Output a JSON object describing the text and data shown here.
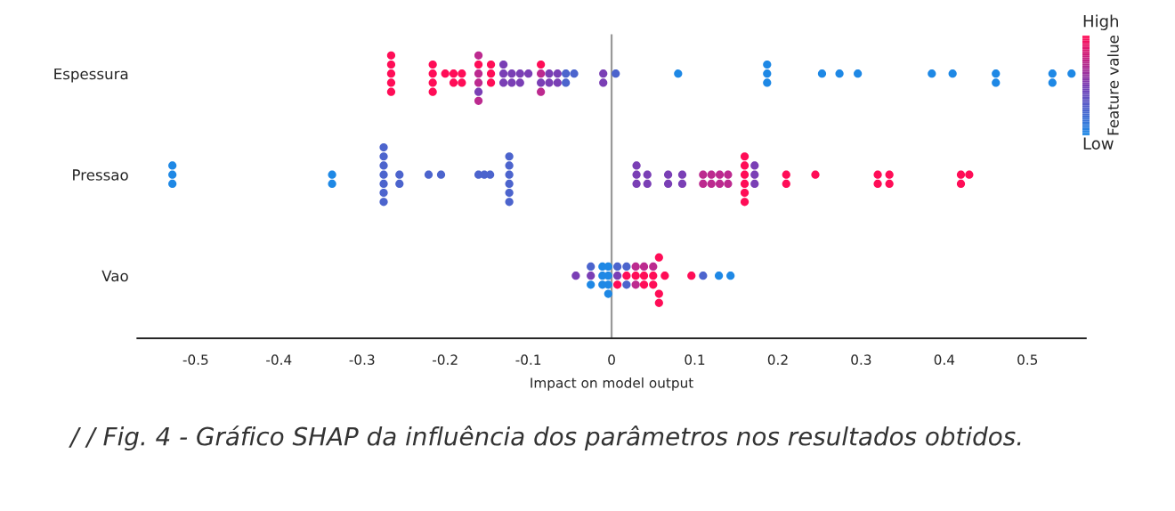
{
  "chart_data": {
    "type": "scatter",
    "orientation": "horizontal",
    "categories": [
      "Espessura",
      "Pressao",
      "Vao"
    ],
    "xlabel": "Impact on model output",
    "xlim": [
      -0.57,
      0.57
    ],
    "xticks": [
      -0.5,
      -0.4,
      -0.3,
      -0.2,
      -0.1,
      0,
      0.1,
      0.2,
      0.3,
      0.4,
      0.5
    ],
    "clabel": "Feature value",
    "ref_lines": [
      {
        "axis": "x",
        "value": 0,
        "color": "#999999"
      }
    ],
    "grid": false,
    "marker": "circle",
    "annotations": [
      "High",
      "Low",
      "/ / Fig. 4 - Gráfico SHAP da influência dos parâmetros nos resultados obtidos."
    ],
    "series": [
      {
        "x": [
          "Espessura",
          "Espessura",
          "Espessura",
          "Espessura",
          "Espessura",
          "Espessura",
          "Espessura",
          "Espessura",
          "Espessura",
          "Espessura",
          "Espessura",
          "Espessura",
          "Espessura",
          "Espessura",
          "Espessura",
          "Espessura",
          "Espessura",
          "Espessura",
          "Espessura",
          "Espessura",
          "Espessura",
          "Espessura",
          "Espessura",
          "Espessura",
          "Espessura",
          "Espessura",
          "Espessura",
          "Espessura",
          "Espessura",
          "Espessura",
          "Espessura",
          "Espessura",
          "Espessura",
          "Espessura",
          "Espessura",
          "Espessura",
          "Espessura",
          "Espessura",
          "Espessura",
          "Espessura",
          "Espessura",
          "Espessura",
          "Espessura",
          "Espessura",
          "Espessura",
          "Espessura",
          "Espessura",
          "Espessura",
          "Espessura",
          "Espessura",
          "Espessura",
          "Espessura",
          "Espessura",
          "Espessura",
          "Espessura",
          "Espessura",
          "Espessura",
          "Espessura",
          "Espessura"
        ],
        "values": [
          -0.265,
          -0.265,
          -0.265,
          -0.265,
          -0.265,
          -0.215,
          -0.215,
          -0.215,
          -0.215,
          -0.2,
          -0.19,
          -0.19,
          -0.18,
          -0.18,
          -0.16,
          -0.16,
          -0.16,
          -0.16,
          -0.16,
          -0.16,
          -0.145,
          -0.145,
          -0.145,
          -0.13,
          -0.13,
          -0.13,
          -0.12,
          -0.12,
          -0.11,
          -0.11,
          -0.1,
          -0.085,
          -0.085,
          -0.085,
          -0.085,
          -0.075,
          -0.075,
          -0.065,
          -0.065,
          -0.055,
          -0.055,
          -0.045,
          -0.01,
          -0.01,
          0.005,
          0.08,
          0.187,
          0.187,
          0.187,
          0.253,
          0.274,
          0.296,
          0.385,
          0.41,
          0.462,
          0.462,
          0.53,
          0.53,
          0.553
        ],
        "colors": [
          "#ff0d57",
          "#ff0d57",
          "#ff0d57",
          "#ff0d57",
          "#ff0d57",
          "#ff0d57",
          "#ff0d57",
          "#ff0d57",
          "#ff0d57",
          "#ff0d57",
          "#ff0d57",
          "#ff0d57",
          "#ff0d57",
          "#ff0d57",
          "#bc2a8f",
          "#bc2a8f",
          "#ff0d57",
          "#7a3fb5",
          "#bc2a8f",
          "#bc2a8f",
          "#ff0d57",
          "#ff0d57",
          "#ff0d57",
          "#7a3fb5",
          "#7a3fb5",
          "#7a3fb5",
          "#7a3fb5",
          "#7a3fb5",
          "#7a3fb5",
          "#7a3fb5",
          "#7a3fb5",
          "#bc2a8f",
          "#7a3fb5",
          "#ff0d57",
          "#bc2a8f",
          "#7a3fb5",
          "#7a3fb5",
          "#7a3fb5",
          "#7a3fb5",
          "#4c64cd",
          "#4c64cd",
          "#4c64cd",
          "#7a3fb5",
          "#7a3fb5",
          "#4c64cd",
          "#1e88e5",
          "#1e88e5",
          "#1e88e5",
          "#1e88e5",
          "#1e88e5",
          "#1e88e5",
          "#1e88e5",
          "#1e88e5",
          "#1e88e5",
          "#1e88e5",
          "#1e88e5",
          "#1e88e5",
          "#1e88e5",
          "#1e88e5"
        ]
      },
      {
        "x": [
          "Pressao",
          "Pressao",
          "Pressao",
          "Pressao",
          "Pressao",
          "Pressao",
          "Pressao",
          "Pressao",
          "Pressao",
          "Pressao",
          "Pressao",
          "Pressao",
          "Pressao",
          "Pressao",
          "Pressao",
          "Pressao",
          "Pressao",
          "Pressao",
          "Pressao",
          "Pressao",
          "Pressao",
          "Pressao",
          "Pressao",
          "Pressao",
          "Pressao",
          "Pressao",
          "Pressao",
          "Pressao",
          "Pressao",
          "Pressao",
          "Pressao",
          "Pressao",
          "Pressao",
          "Pressao",
          "Pressao",
          "Pressao",
          "Pressao",
          "Pressao",
          "Pressao",
          "Pressao",
          "Pressao",
          "Pressao",
          "Pressao",
          "Pressao",
          "Pressao",
          "Pressao",
          "Pressao",
          "Pressao",
          "Pressao",
          "Pressao",
          "Pressao",
          "Pressao",
          "Pressao",
          "Pressao",
          "Pressao",
          "Pressao",
          "Pressao",
          "Pressao",
          "Pressao",
          "Pressao",
          "Pressao"
        ],
        "values": [
          -0.528,
          -0.528,
          -0.528,
          -0.336,
          -0.336,
          -0.274,
          -0.274,
          -0.274,
          -0.274,
          -0.274,
          -0.274,
          -0.274,
          -0.255,
          -0.255,
          -0.22,
          -0.205,
          -0.16,
          -0.153,
          -0.146,
          -0.123,
          -0.123,
          -0.123,
          -0.123,
          -0.123,
          -0.123,
          0.03,
          0.03,
          0.03,
          0.043,
          0.043,
          0.068,
          0.068,
          0.085,
          0.085,
          0.11,
          0.11,
          0.12,
          0.12,
          0.13,
          0.13,
          0.14,
          0.14,
          0.16,
          0.16,
          0.16,
          0.16,
          0.16,
          0.16,
          0.172,
          0.172,
          0.172,
          0.21,
          0.21,
          0.245,
          0.32,
          0.32,
          0.334,
          0.334,
          0.42,
          0.42,
          0.43
        ],
        "colors": [
          "#1e88e5",
          "#1e88e5",
          "#1e88e5",
          "#1e88e5",
          "#1e88e5",
          "#4c64cd",
          "#4c64cd",
          "#4c64cd",
          "#4c64cd",
          "#4c64cd",
          "#4c64cd",
          "#4c64cd",
          "#4c64cd",
          "#4c64cd",
          "#4c64cd",
          "#4c64cd",
          "#4c64cd",
          "#4c64cd",
          "#4c64cd",
          "#4c64cd",
          "#4c64cd",
          "#4c64cd",
          "#4c64cd",
          "#4c64cd",
          "#4c64cd",
          "#7a3fb5",
          "#7a3fb5",
          "#7a3fb5",
          "#7a3fb5",
          "#7a3fb5",
          "#7a3fb5",
          "#7a3fb5",
          "#7a3fb5",
          "#7a3fb5",
          "#bc2a8f",
          "#bc2a8f",
          "#bc2a8f",
          "#bc2a8f",
          "#bc2a8f",
          "#bc2a8f",
          "#bc2a8f",
          "#bc2a8f",
          "#ff0d57",
          "#ff0d57",
          "#ff0d57",
          "#ff0d57",
          "#ff0d57",
          "#ff0d57",
          "#7a3fb5",
          "#7a3fb5",
          "#7a3fb5",
          "#ff0d57",
          "#ff0d57",
          "#ff0d57",
          "#ff0d57",
          "#ff0d57",
          "#ff0d57",
          "#ff0d57",
          "#ff0d57",
          "#ff0d57",
          "#ff0d57"
        ]
      },
      {
        "x": [
          "Vao",
          "Vao",
          "Vao",
          "Vao",
          "Vao",
          "Vao",
          "Vao",
          "Vao",
          "Vao",
          "Vao",
          "Vao",
          "Vao",
          "Vao",
          "Vao",
          "Vao",
          "Vao",
          "Vao",
          "Vao",
          "Vao",
          "Vao",
          "Vao",
          "Vao",
          "Vao",
          "Vao",
          "Vao",
          "Vao",
          "Vao",
          "Vao",
          "Vao",
          "Vao",
          "Vao",
          "Vao",
          "Vao",
          "Vao"
        ],
        "values": [
          -0.043,
          -0.025,
          -0.025,
          -0.025,
          -0.011,
          -0.011,
          -0.011,
          -0.004,
          -0.004,
          -0.004,
          -0.004,
          0.007,
          0.007,
          0.007,
          0.018,
          0.018,
          0.018,
          0.029,
          0.029,
          0.029,
          0.039,
          0.039,
          0.039,
          0.05,
          0.05,
          0.05,
          0.057,
          0.057,
          0.057,
          0.064,
          0.096,
          0.11,
          0.129,
          0.143
        ],
        "colors": [
          "#7a3fb5",
          "#7a3fb5",
          "#1e88e5",
          "#4c64cd",
          "#1e88e5",
          "#1e88e5",
          "#1e88e5",
          "#1e88e5",
          "#1e88e5",
          "#1e88e5",
          "#1e88e5",
          "#7a3fb5",
          "#ff0d57",
          "#4c64cd",
          "#ff0d57",
          "#4c64cd",
          "#4c64cd",
          "#ff0d57",
          "#bc2a8f",
          "#bc2a8f",
          "#ff0d57",
          "#ff0d57",
          "#bc2a8f",
          "#ff0d57",
          "#ff0d57",
          "#bc2a8f",
          "#ff0d57",
          "#ff0d57",
          "#ff0d57",
          "#ff0d57",
          "#ff0d57",
          "#4c64cd",
          "#1e88e5",
          "#1e88e5"
        ]
      }
    ]
  }
}
